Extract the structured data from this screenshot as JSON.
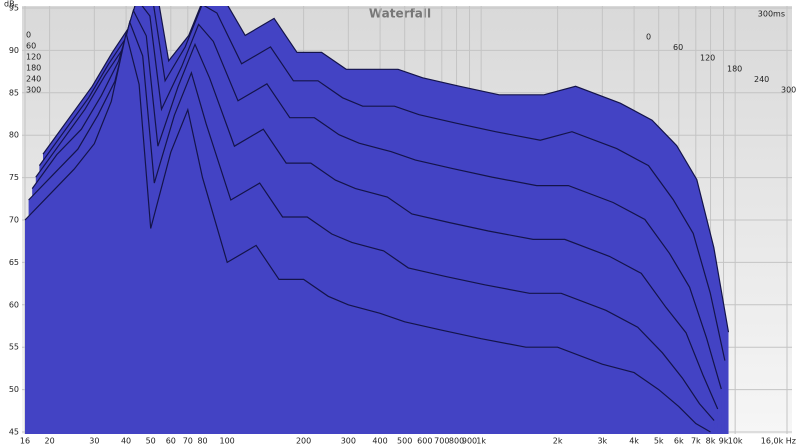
{
  "chart_data": {
    "type": "waterfall",
    "title": "Waterfall",
    "y_label": "dB",
    "time_span_label": "300ms",
    "log_x": true,
    "grid": true,
    "color": "#4343c4",
    "edge_color": "#14144a",
    "xlim": [
      16,
      16000
    ],
    "ylim": [
      45,
      95
    ],
    "yticks": [
      45,
      50,
      55,
      60,
      65,
      70,
      75,
      80,
      85,
      90,
      95
    ],
    "zticks": [
      0,
      60,
      120,
      180,
      240,
      300
    ],
    "xticks": [
      16,
      20,
      30,
      40,
      50,
      60,
      70,
      80,
      100,
      200,
      300,
      400,
      500,
      600,
      700,
      800,
      900,
      {
        "value": 1000,
        "label": "1k"
      },
      {
        "value": 2000,
        "label": "2k"
      },
      {
        "value": 3000,
        "label": "3k"
      },
      {
        "value": 4000,
        "label": "4k"
      },
      {
        "value": 5000,
        "label": "5k"
      },
      {
        "value": 6000,
        "label": "6k"
      },
      {
        "value": 7000,
        "label": "7k"
      },
      {
        "value": 8000,
        "label": "8k"
      },
      {
        "value": 9000,
        "label": "9k"
      },
      {
        "value": 10000,
        "label": "10k"
      },
      {
        "value": 16000,
        "label": "16,0k Hz"
      }
    ],
    "x": [
      16,
      20,
      25,
      30,
      35,
      40,
      45,
      50,
      60,
      70,
      80,
      100,
      130,
      160,
      200,
      250,
      300,
      400,
      500,
      700,
      1000,
      1500,
      2000,
      3000,
      4000,
      5000,
      6000,
      7000,
      8000
    ],
    "slices": [
      {
        "time": 0,
        "values": [
          76,
          80,
          84,
          88,
          91,
          95,
          95,
          87,
          90,
          95,
          95,
          90,
          92,
          88,
          88,
          86,
          86,
          86,
          85,
          84,
          83,
          83,
          84,
          82,
          80,
          77,
          73,
          65,
          55
        ]
      },
      {
        "time": 60,
        "values": [
          75,
          79,
          83,
          87,
          90,
          95,
          94,
          85,
          89,
          94,
          93,
          87,
          89,
          85,
          85,
          83,
          82,
          82,
          81,
          80,
          79,
          78,
          79,
          77,
          75,
          71,
          67,
          60,
          52
        ]
      },
      {
        "time": 120,
        "values": [
          74,
          78,
          82,
          86,
          89,
          95,
          93,
          82,
          87,
          92,
          90,
          83,
          85,
          81,
          81,
          79,
          78,
          77,
          76,
          75,
          74,
          73,
          73,
          71,
          69,
          65,
          61,
          55,
          49
        ]
      },
      {
        "time": 180,
        "values": [
          73,
          77,
          80,
          84,
          88,
          94,
          91,
          78,
          85,
          90,
          86,
          78,
          80,
          76,
          76,
          74,
          73,
          72,
          70,
          69,
          68,
          67,
          67,
          65,
          63,
          59,
          56,
          51,
          47
        ]
      },
      {
        "time": 240,
        "values": [
          72,
          75,
          78,
          82,
          86,
          93,
          89,
          74,
          82,
          87,
          81,
          72,
          74,
          70,
          70,
          68,
          67,
          66,
          64,
          63,
          62,
          61,
          61,
          59,
          57,
          54,
          51,
          48,
          46
        ]
      },
      {
        "time": 300,
        "values": [
          70,
          73,
          76,
          79,
          84,
          92,
          86,
          69,
          78,
          83,
          75,
          65,
          67,
          63,
          63,
          61,
          60,
          59,
          58,
          57,
          56,
          55,
          55,
          53,
          52,
          50,
          48,
          46,
          45
        ]
      }
    ]
  }
}
